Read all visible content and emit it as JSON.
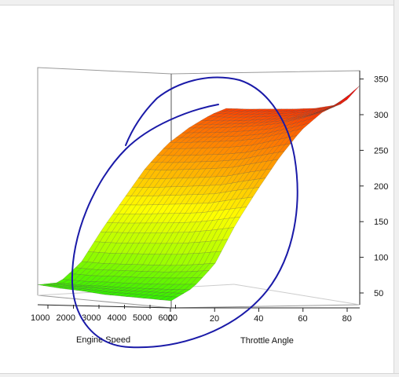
{
  "chart_data": {
    "type": "surface",
    "title": "",
    "xlabel": "Engine Speed",
    "ylabel": "Throttle Angle",
    "zlabel": "",
    "engine_speed_ticks": [
      "1000",
      "2000",
      "3000",
      "4000",
      "5000",
      "6000"
    ],
    "throttle_angle_ticks": [
      "0",
      "20",
      "40",
      "60",
      "80"
    ],
    "z_ticks": [
      "50",
      "100",
      "150",
      "200",
      "250",
      "300",
      "350"
    ],
    "engine_speed": [
      1000,
      2000,
      3000,
      4000,
      5000,
      6000,
      7000
    ],
    "throttle_angle": [
      0,
      10,
      20,
      30,
      40,
      50,
      60,
      70,
      80,
      87
    ],
    "z": [
      [
        45,
        50,
        80,
        130,
        175,
        220,
        255,
        280,
        300,
        310
      ],
      [
        43,
        50,
        80,
        132,
        178,
        222,
        258,
        283,
        302,
        312
      ],
      [
        42,
        52,
        82,
        135,
        182,
        226,
        262,
        287,
        305,
        315
      ],
      [
        40,
        53,
        84,
        138,
        186,
        230,
        266,
        292,
        309,
        318
      ],
      [
        40,
        55,
        86,
        142,
        190,
        235,
        272,
        298,
        313,
        322
      ],
      [
        40,
        57,
        90,
        148,
        198,
        244,
        282,
        308,
        320,
        330
      ],
      [
        40,
        60,
        95,
        155,
        205,
        252,
        292,
        320,
        335,
        360
      ]
    ],
    "z_range": [
      30,
      370
    ],
    "colormap": [
      "#33ee00",
      "#aaff00",
      "#ffff00",
      "#ffaa00",
      "#ff6600",
      "#ff0000"
    ],
    "grid": false,
    "legend": "none",
    "annotation_color": "#1a1aa8"
  }
}
